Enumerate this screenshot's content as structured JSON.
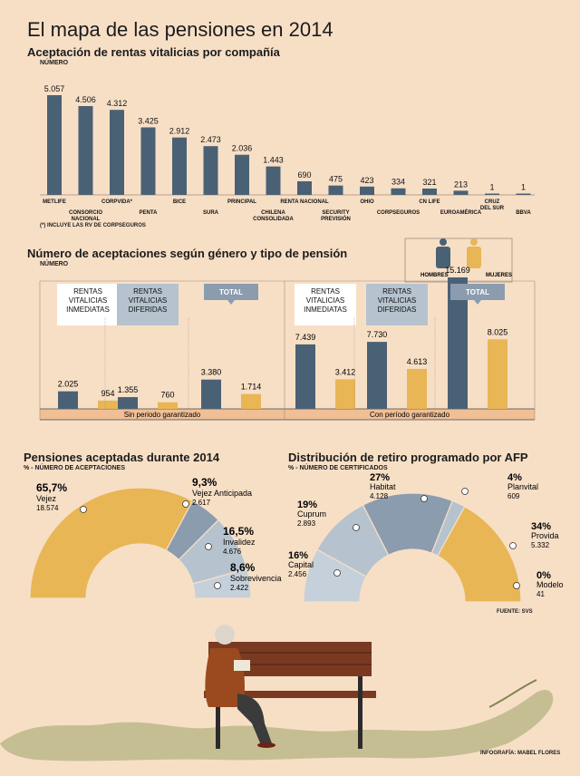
{
  "title": "El mapa de las pensiones en 2014",
  "credit_source": "FUENTE: SVS",
  "credit_infographic": "INFOGRAFÍA: MABEL FLORES",
  "colors": {
    "dark": "#4a6175",
    "light": "#e9b655",
    "bg": "#f7dfc6",
    "band": "#f1bf95",
    "pale": "#b6c3cf",
    "mid": "#8b9cae"
  },
  "chart_data": [
    {
      "type": "bar",
      "title": "Aceptación de rentas vitalicias por compañía",
      "subtitle": "NÚMERO",
      "note": "(*) INCLUYE LAS RV DE CORPSEGUROS",
      "categories": [
        "METLIFE",
        "CONSORCIO NACIONAL",
        "CORPVIDA*",
        "PENTA",
        "BICE",
        "SURA",
        "PRINCIPAL",
        "CHILENA CONSOLIDADA",
        "RENTA NACIONAL",
        "SECURITY PREVISIÓN",
        "OHIO",
        "CORPSEGUROS",
        "CN LIFE",
        "EUROAMÉRICA",
        "CRUZ DEL SUR",
        "BBVA"
      ],
      "values": [
        5057,
        4506,
        4312,
        3425,
        2912,
        2473,
        2036,
        1443,
        690,
        475,
        423,
        334,
        321,
        213,
        1,
        1
      ],
      "value_labels": [
        "5.057",
        "4.506",
        "4.312",
        "3.425",
        "2.912",
        "2.473",
        "2.036",
        "1.443",
        "690",
        "475",
        "423",
        "334",
        "321",
        "213",
        "1",
        "1"
      ]
    },
    {
      "type": "bar",
      "title": "Número de aceptaciones según género y tipo de pensión",
      "subtitle": "NÚMERO",
      "legend": [
        "HOMBRES",
        "MUJERES"
      ],
      "groups": [
        {
          "name": "Sin periodo garantizado",
          "categories": [
            "RENTAS VITALICIAS INMEDIATAS",
            "RENTAS VITALICIAS DIFERIDAS",
            "TOTAL"
          ],
          "hombres": [
            2025,
            1355,
            3380
          ],
          "mujeres": [
            954,
            760,
            1714
          ],
          "hombres_labels": [
            "2.025",
            "1.355",
            "3.380"
          ],
          "mujeres_labels": [
            "954",
            "760",
            "1.714"
          ]
        },
        {
          "name": "Con período garantizado",
          "categories": [
            "RENTAS VITALICIAS INMEDIATAS",
            "RENTAS VITALICIAS DIFERIDAS",
            "TOTAL"
          ],
          "hombres": [
            7439,
            7730,
            15169
          ],
          "mujeres": [
            3412,
            4613,
            8025
          ],
          "hombres_labels": [
            "7.439",
            "7.730",
            "15.169"
          ],
          "mujeres_labels": [
            "3.412",
            "4.613",
            "8.025"
          ]
        }
      ]
    },
    {
      "type": "pie",
      "title": "Pensiones aceptadas durante 2014",
      "subtitle": "% - NÚMERO DE ACEPTACIONES",
      "slices": [
        {
          "pct": "65,7%",
          "name": "Vejez",
          "count": "18.574",
          "value": 65.7
        },
        {
          "pct": "9,3%",
          "name": "Vejez Anticipada",
          "count": "2.617",
          "value": 9.3
        },
        {
          "pct": "16,5%",
          "name": "Invalidez",
          "count": "4.676",
          "value": 16.5
        },
        {
          "pct": "8,6%",
          "name": "Sobrevivencia",
          "count": "2.422",
          "value": 8.6
        }
      ]
    },
    {
      "type": "pie",
      "title": "Distribución de retiro programado por AFP",
      "subtitle": "% - NÚMERO DE CERTIFICADOS",
      "slices": [
        {
          "pct": "16%",
          "name": "Capital",
          "count": "2.456",
          "value": 16
        },
        {
          "pct": "19%",
          "name": "Cuprum",
          "count": "2.893",
          "value": 19
        },
        {
          "pct": "27%",
          "name": "Habitat",
          "count": "4.128",
          "value": 27
        },
        {
          "pct": "4%",
          "name": "Planvital",
          "count": "609",
          "value": 4
        },
        {
          "pct": "34%",
          "name": "Provida",
          "count": "5.332",
          "value": 34
        },
        {
          "pct": "0%",
          "name": "Modelo",
          "count": "41",
          "value": 0
        }
      ]
    }
  ]
}
